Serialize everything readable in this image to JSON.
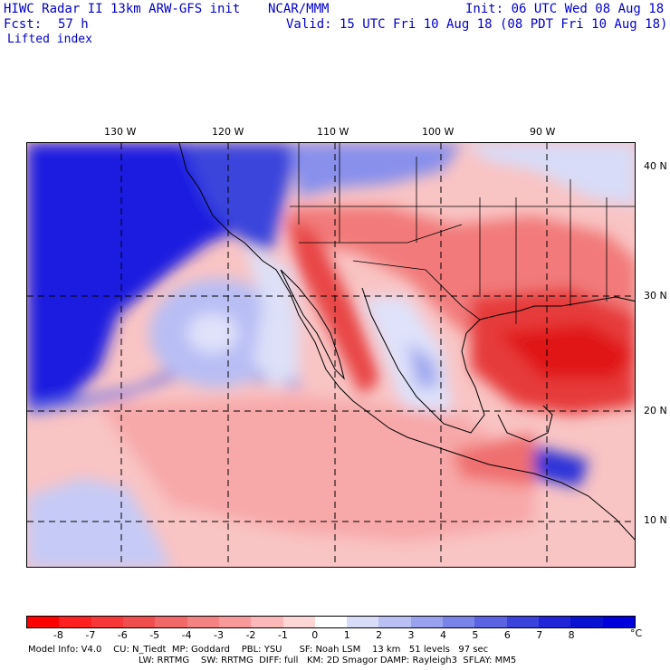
{
  "header": {
    "title": "HIWC Radar II 13km ARW-GFS init",
    "org": "NCAR/MMM",
    "init": "Init: 06 UTC Wed 08 Aug 18",
    "fcst_label": "Fcst:",
    "fcst_value": "57 h",
    "valid": "Valid: 15 UTC Fri 10 Aug 18 (08 PDT Fri 10 Aug 18)",
    "field": "Lifted index"
  },
  "longitude_labels": [
    "130 W",
    "120 W",
    "110 W",
    "100 W",
    "90 W"
  ],
  "latitude_labels": [
    "40 N",
    "30 N",
    "20 N",
    "10 N"
  ],
  "colorbar": {
    "unit": "°C",
    "ticks": [
      "-8",
      "-7",
      "-6",
      "-5",
      "-4",
      "-3",
      "-2",
      "-1",
      "0",
      "1",
      "2",
      "3",
      "4",
      "5",
      "6",
      "7",
      "8"
    ],
    "colors": [
      "#ff0000",
      "#ff2020",
      "#f83838",
      "#f04e4e",
      "#f06868",
      "#f48282",
      "#f89a9a",
      "#fbb8b8",
      "#fdd6d6",
      "#ffffff",
      "#d8dcf8",
      "#b8c0f4",
      "#98a2ee",
      "#7a84e8",
      "#5a64e2",
      "#3a44dc",
      "#2026d8",
      "#0a12d2",
      "#0000dd"
    ]
  },
  "footer": {
    "line1": "Model Info: V4.0    CU: N_Tiedt  MP: Goddard    PBL: YSU      SF: Noah LSM    13 km   51 levels   97 sec",
    "line2": "LW: RRTMG    SW: RRTMG  DIFF: full   KM: 2D Smagor DAMP: Rayleigh3  SFLAY: MM5"
  }
}
